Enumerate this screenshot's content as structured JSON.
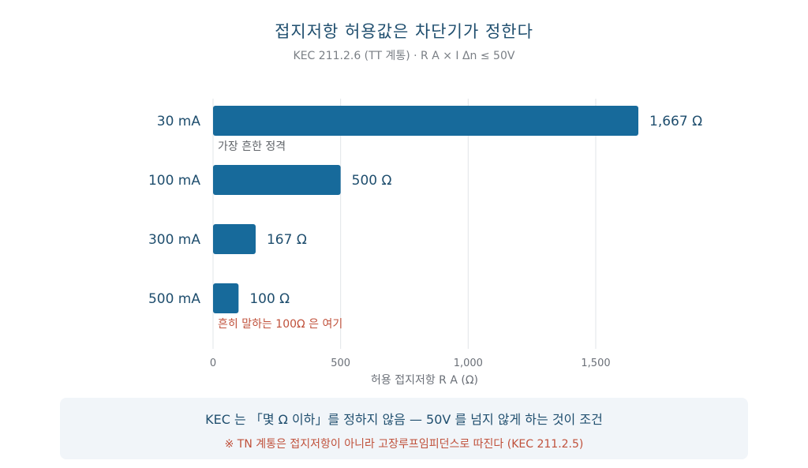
{
  "colors": {
    "bar": "#176a9b",
    "label": "#1f4e6e",
    "grid": "#e2e5e8",
    "axis_text": "#6b7078",
    "annotation_gray": "#5f6368",
    "annotation_red": "#c0513b"
  },
  "note": {
    "main": "KEC 는 「몇 Ω 이하」를 정하지 않음 — 50V 를 넘지 않게 하는 것이 조건",
    "sub": "※ TN 계통은 접지저항이 아니라 고장루프임피던스로 따진다 (KEC 211.2.5)"
  },
  "chart_data": {
    "type": "bar",
    "orientation": "horizontal",
    "title": "접지저항 허용값은 차단기가 정한다",
    "subtitle": "KEC 211.2.6 (TT 계통) · R A × I Δn ≤ 50V",
    "categories": [
      "30 mA",
      "100 mA",
      "300 mA",
      "500 mA"
    ],
    "values": [
      1667,
      500,
      167,
      100
    ],
    "value_labels": [
      "1,667 Ω",
      "500 Ω",
      "167 Ω",
      "100 Ω"
    ],
    "annotations": [
      {
        "category": "30 mA",
        "text": "가장 흔한 정격",
        "tone": "gray"
      },
      {
        "category": "500 mA",
        "text": "흔히 말하는 100Ω 은 여기",
        "tone": "red"
      }
    ],
    "xlabel": "허용 접지저항 R A (Ω)",
    "ylabel": "",
    "xlim": [
      0,
      1667
    ],
    "xticks": [
      0,
      500,
      1000,
      1500
    ],
    "xtick_labels": [
      "0",
      "500",
      "1,000",
      "1,500"
    ],
    "grid": true
  }
}
